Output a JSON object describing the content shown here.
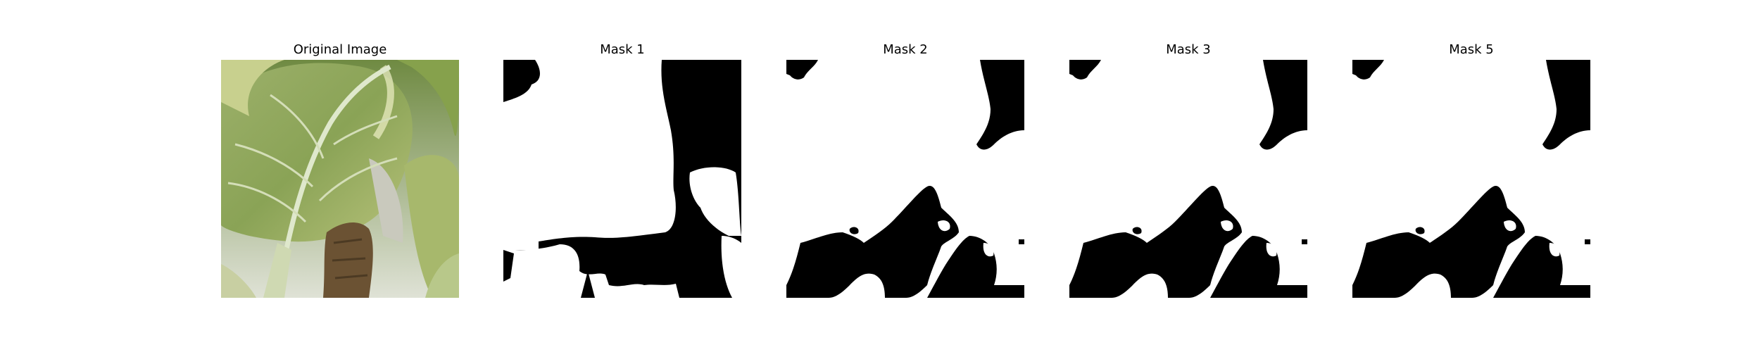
{
  "figure": {
    "panels": [
      {
        "title": "Original Image",
        "kind": "photo"
      },
      {
        "title": "Mask 1",
        "kind": "mask"
      },
      {
        "title": "Mask 2",
        "kind": "mask"
      },
      {
        "title": "Mask 3",
        "kind": "mask"
      },
      {
        "title": "Mask 5",
        "kind": "mask"
      }
    ],
    "colors": {
      "mask_foreground": "#ffffff",
      "mask_background": "#000000",
      "leaf_green": "#9fb468",
      "vein": "#dfe8cc",
      "brown_stem": "#6b5233"
    }
  }
}
